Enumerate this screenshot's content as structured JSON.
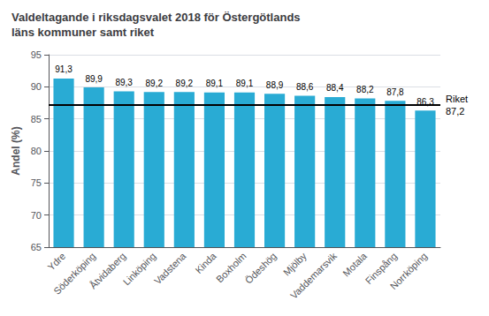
{
  "chart_data": {
    "type": "bar",
    "title": "Valdeltagande i riksdagsvalet 2018 för Östergötlands\nläns kommuner samt riket",
    "ylabel": "Andel (%)",
    "categories": [
      "Ydre",
      "Söderköping",
      "Åtvidaberg",
      "Linköping",
      "Vadstena",
      "Kinda",
      "Boxholm",
      "Ödeshög",
      "Mjölby",
      "Vaddemarsvik",
      "Motala",
      "Finspång",
      "Norrköping"
    ],
    "values": [
      91.3,
      89.9,
      89.3,
      89.2,
      89.2,
      89.1,
      89.1,
      88.9,
      88.6,
      88.4,
      88.2,
      87.8,
      86.3
    ],
    "value_labels": [
      "91,3",
      "89,9",
      "89,3",
      "89,2",
      "89,2",
      "89,1",
      "89,1",
      "88,9",
      "88,6",
      "88,4",
      "88,2",
      "87,8",
      "86,3"
    ],
    "data_labels": true,
    "color": "#29ABD4",
    "ylim": [
      65,
      95
    ],
    "yticks": [
      65,
      70,
      75,
      80,
      85,
      90,
      95
    ],
    "grid": true,
    "annotations": [
      {
        "text": "Riket\n87,2",
        "y": 87.2,
        "color": "#000000",
        "line_style": "solid"
      }
    ]
  }
}
